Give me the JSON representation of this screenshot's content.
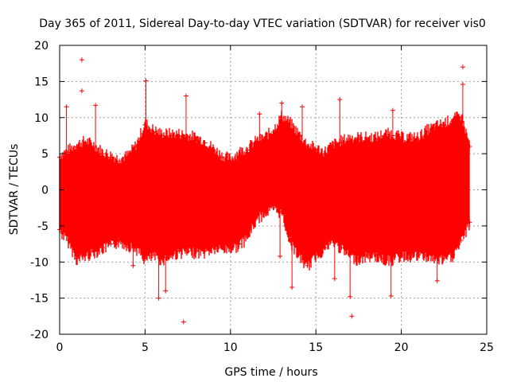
{
  "chart_data": {
    "type": "scatter",
    "title": "Day 365 of 2011, Sidereal Day-to-day VTEC variation (SDTVAR) for receiver vis0",
    "xlabel": "GPS time / hours",
    "ylabel": "SDTVAR / TECUs",
    "xlim": [
      0,
      25
    ],
    "ylim": [
      -20,
      20
    ],
    "x_ticks": [
      0,
      5,
      10,
      15,
      20,
      25
    ],
    "y_ticks": [
      -20,
      -15,
      -10,
      -5,
      0,
      5,
      10,
      15,
      20
    ],
    "grid": true,
    "marker": "+",
    "series": [
      {
        "name": "SDTVAR",
        "color": "#ff0000",
        "x": [
          0.0,
          0.5,
          1.0,
          1.5,
          2.0,
          2.5,
          3.0,
          3.5,
          4.0,
          4.5,
          5.0,
          5.5,
          6.0,
          6.5,
          7.0,
          7.5,
          8.0,
          8.5,
          9.0,
          9.5,
          10.0,
          10.5,
          11.0,
          11.5,
          12.0,
          12.5,
          13.0,
          13.5,
          14.0,
          14.5,
          15.0,
          15.5,
          16.0,
          16.5,
          17.0,
          17.5,
          18.0,
          18.5,
          19.0,
          19.5,
          20.0,
          20.5,
          21.0,
          21.5,
          22.0,
          22.5,
          23.0,
          23.5,
          24.0
        ],
        "upper": [
          4.5,
          5.2,
          6.0,
          6.5,
          6.0,
          5.0,
          4.5,
          4.0,
          4.5,
          6.0,
          9.0,
          8.0,
          7.5,
          7.5,
          7.5,
          7.3,
          7.0,
          6.5,
          5.5,
          4.5,
          4.0,
          5.0,
          5.5,
          6.5,
          7.0,
          8.0,
          10.0,
          9.0,
          7.5,
          6.0,
          5.5,
          5.0,
          6.0,
          6.5,
          7.0,
          7.0,
          7.0,
          7.0,
          7.5,
          7.5,
          7.0,
          7.0,
          7.0,
          8.0,
          8.5,
          9.0,
          9.5,
          10.0,
          6.0
        ],
        "lower": [
          -5.5,
          -7.0,
          -9.5,
          -9.0,
          -8.5,
          -8.0,
          -7.5,
          -7.0,
          -7.5,
          -8.0,
          -9.5,
          -9.0,
          -9.5,
          -9.0,
          -8.5,
          -8.5,
          -8.5,
          -8.5,
          -8.0,
          -8.0,
          -8.0,
          -7.5,
          -6.5,
          -4.0,
          -3.0,
          -2.5,
          -3.0,
          -7.0,
          -9.0,
          -10.5,
          -9.0,
          -8.0,
          -7.0,
          -8.0,
          -9.0,
          -9.5,
          -9.0,
          -9.0,
          -9.5,
          -9.5,
          -9.0,
          -9.0,
          -9.0,
          -9.0,
          -9.5,
          -9.5,
          -9.0,
          -7.0,
          -4.5
        ],
        "spikes": [
          {
            "x": 1.3,
            "y": 18.0
          },
          {
            "x": 1.3,
            "y": 13.7
          },
          {
            "x": 0.4,
            "y": 11.5
          },
          {
            "x": 2.1,
            "y": 11.7
          },
          {
            "x": 5.05,
            "y": 15.1
          },
          {
            "x": 7.4,
            "y": 13.0
          },
          {
            "x": 11.7,
            "y": 10.5
          },
          {
            "x": 13.0,
            "y": 12.0
          },
          {
            "x": 14.2,
            "y": 11.5
          },
          {
            "x": 16.4,
            "y": 12.5
          },
          {
            "x": 19.5,
            "y": 11.0
          },
          {
            "x": 23.6,
            "y": 17.0
          },
          {
            "x": 23.6,
            "y": 14.6
          },
          {
            "x": 5.8,
            "y": -15.0
          },
          {
            "x": 7.25,
            "y": -18.3
          },
          {
            "x": 6.2,
            "y": -14.0
          },
          {
            "x": 12.9,
            "y": -9.2
          },
          {
            "x": 13.6,
            "y": -13.5
          },
          {
            "x": 16.1,
            "y": -12.3
          },
          {
            "x": 17.1,
            "y": -17.5
          },
          {
            "x": 17.0,
            "y": -14.8
          },
          {
            "x": 19.4,
            "y": -14.7
          },
          {
            "x": 22.1,
            "y": -12.6
          },
          {
            "x": 2.2,
            "y": -8.5
          },
          {
            "x": 4.3,
            "y": -10.5
          }
        ]
      }
    ]
  }
}
